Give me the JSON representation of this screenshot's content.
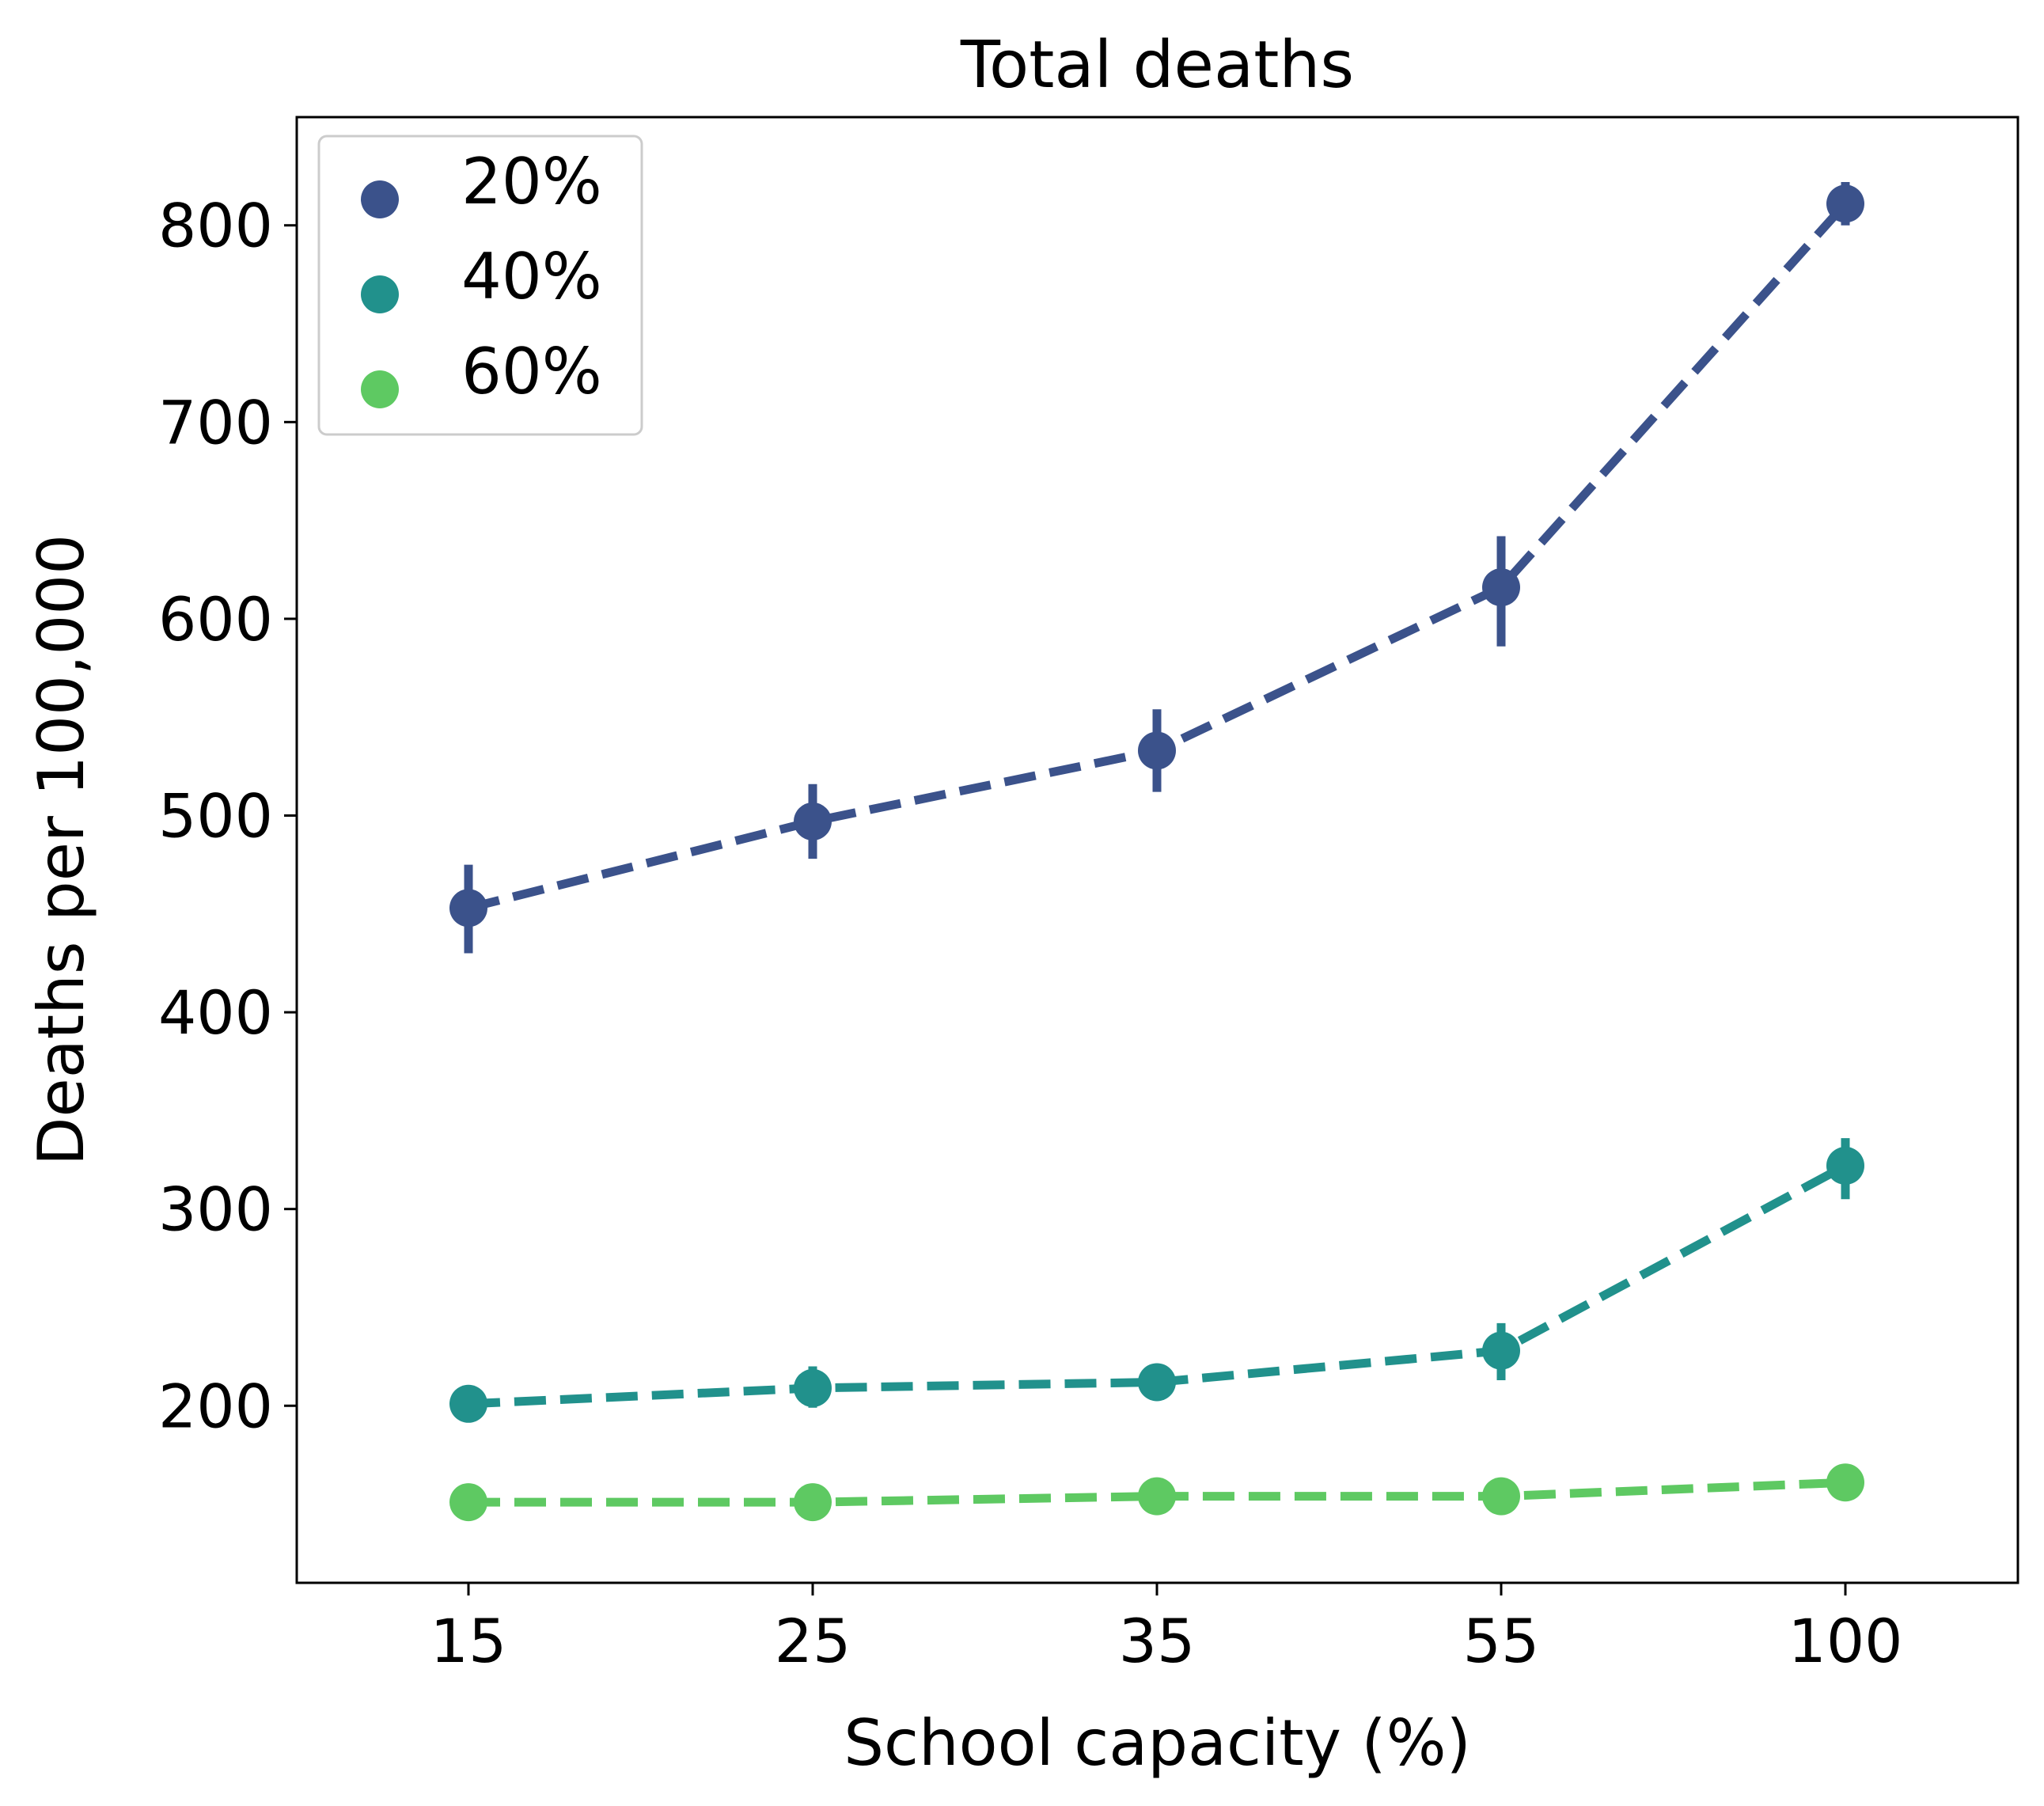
{
  "chart_data": {
    "type": "line",
    "title": "Total deaths",
    "xlabel": "School capacity (%)",
    "ylabel": "Deaths per 100,000",
    "categories": [
      "15",
      "25",
      "35",
      "55",
      "100"
    ],
    "yticks": [
      "200",
      "300",
      "400",
      "500",
      "600",
      "700",
      "800"
    ],
    "ytick_values": [
      200,
      300,
      400,
      500,
      600,
      700,
      800
    ],
    "ylim": [
      110,
      855
    ],
    "grid": false,
    "legend_position": "top-left",
    "line_style": "dashed",
    "series": [
      {
        "name": "20%",
        "color": "#3b528b",
        "values": [
          453,
          497,
          533,
          616,
          811
        ],
        "err_low": [
          430,
          478,
          512,
          586,
          800
        ],
        "err_high": [
          475,
          516,
          554,
          642,
          822
        ]
      },
      {
        "name": "40%",
        "color": "#21918c",
        "values": [
          201,
          209,
          212,
          228,
          322
        ],
        "err_low": [
          193,
          199,
          204,
          213,
          305
        ],
        "err_high": [
          209,
          220,
          221,
          242,
          336
        ]
      },
      {
        "name": "60%",
        "color": "#5ec962",
        "values": [
          151,
          151,
          154,
          154,
          161
        ],
        "err_low": [
          145,
          142,
          148,
          146,
          157
        ],
        "err_high": [
          157,
          158,
          160,
          162,
          165
        ]
      }
    ]
  }
}
